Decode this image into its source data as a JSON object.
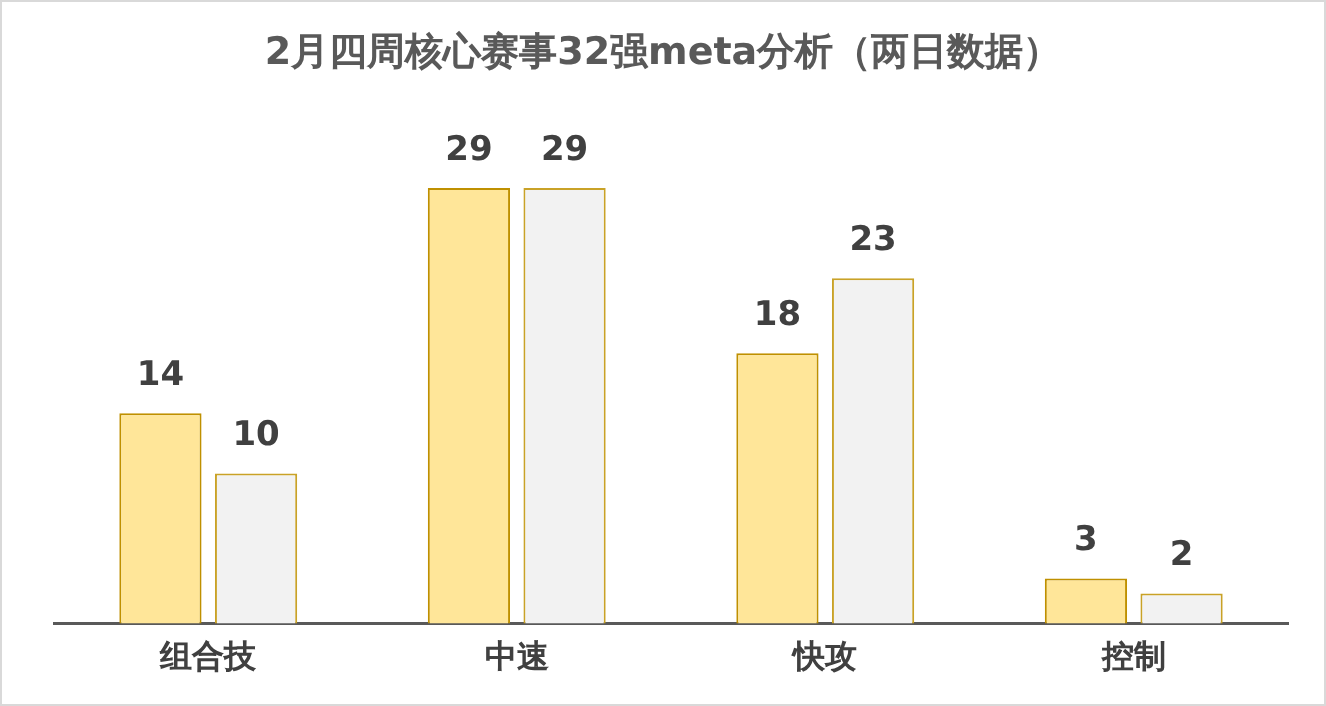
{
  "chart_data": {
    "type": "bar",
    "title": "2月四周核心赛事32强meta分析（两日数据）",
    "categories": [
      "组合技",
      "中速",
      "快攻",
      "控制"
    ],
    "series": [
      {
        "color": "#ffe699",
        "values": [
          14,
          29,
          18,
          3
        ]
      },
      {
        "color": "#f2f2f2",
        "values": [
          10,
          29,
          23,
          2
        ]
      }
    ],
    "data_labels": true,
    "grid": false,
    "legend": false
  }
}
